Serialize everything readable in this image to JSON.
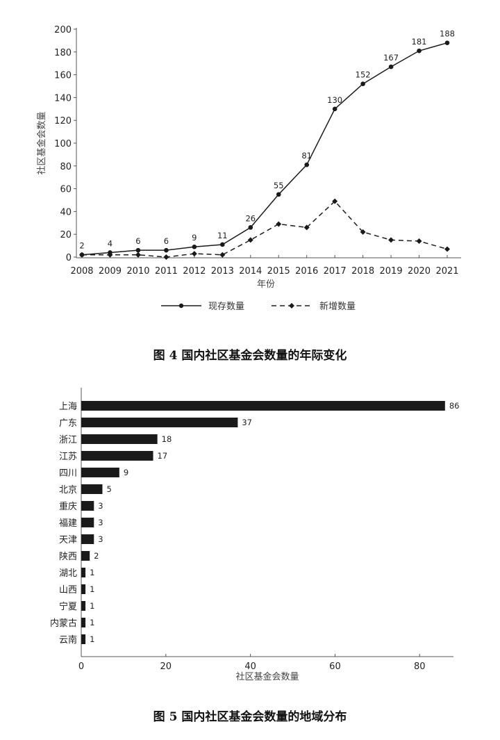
{
  "chart_data": [
    {
      "type": "line",
      "caption": "图 4  国内社区基金会数量的年际变化",
      "xlabel": "年份",
      "ylabel": "社区基金会数量",
      "x": [
        2008,
        2009,
        2010,
        2011,
        2012,
        2013,
        2014,
        2015,
        2016,
        2017,
        2018,
        2019,
        2020,
        2021
      ],
      "ylim": [
        0,
        200
      ],
      "yticks": [
        0,
        20,
        40,
        60,
        80,
        100,
        120,
        140,
        160,
        180,
        200
      ],
      "series": [
        {
          "name": "现存数量",
          "style": "solid",
          "marker": "circle",
          "values": [
            2,
            4,
            6,
            6,
            9,
            11,
            26,
            55,
            81,
            130,
            152,
            167,
            181,
            188
          ],
          "labels": [
            "2",
            "4",
            "6",
            "6",
            "9",
            "11",
            "26",
            "55",
            "81",
            "130",
            "152",
            "167",
            "181",
            "188"
          ]
        },
        {
          "name": "新增数量",
          "style": "dashed",
          "marker": "diamond",
          "values": [
            2,
            2,
            2,
            0,
            3,
            2,
            15,
            29,
            26,
            49,
            22,
            15,
            14,
            7
          ]
        }
      ],
      "legend_position": "bottom",
      "color": "#1a1a1a"
    },
    {
      "type": "bar",
      "orientation": "horizontal",
      "caption": "图 5  国内社区基金会数量的地域分布",
      "xlabel": "社区基金会数量",
      "categories": [
        "上海",
        "广东",
        "浙江",
        "江苏",
        "四川",
        "北京",
        "重庆",
        "福建",
        "天津",
        "陕西",
        "湖北",
        "山西",
        "宁夏",
        "内蒙古",
        "云南"
      ],
      "values": [
        86,
        37,
        18,
        17,
        9,
        5,
        3,
        3,
        3,
        2,
        1,
        1,
        1,
        1,
        1
      ],
      "xlim": [
        0,
        88
      ],
      "xticks": [
        0,
        20,
        40,
        60,
        80
      ],
      "color": "#1a1a1a"
    }
  ]
}
